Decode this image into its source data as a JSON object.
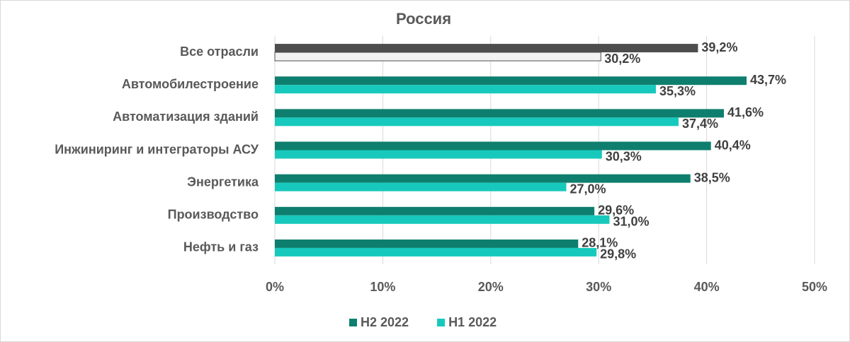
{
  "chart_data": {
    "type": "hbar",
    "title": "Россия",
    "categories": [
      "Все отрасли",
      "Автомобилестроение",
      "Автоматизация зданий",
      "Инжиниринг и интеграторы АСУ",
      "Энергетика",
      "Производство",
      "Нефть и газ"
    ],
    "series": [
      {
        "name": "H2 2022",
        "color": "#0e7f6e",
        "colors": [
          "#4d4d4d",
          "#0e7f6e",
          "#0e7f6e",
          "#0e7f6e",
          "#0e7f6e",
          "#0e7f6e",
          "#0e7f6e"
        ],
        "values": [
          39.2,
          43.7,
          41.6,
          40.4,
          38.5,
          29.6,
          28.1
        ],
        "value_labels": [
          "39,2%",
          "43,7%",
          "41,6%",
          "40,4%",
          "38,5%",
          "29,6%",
          "28,1%"
        ]
      },
      {
        "name": "H1 2022",
        "color": "#17c9bc",
        "colors": [
          "#f2f2f2",
          "#17c9bc",
          "#17c9bc",
          "#17c9bc",
          "#17c9bc",
          "#17c9bc",
          "#17c9bc"
        ],
        "values": [
          30.2,
          35.3,
          37.4,
          30.3,
          27.0,
          31.0,
          29.8
        ],
        "value_labels": [
          "30,2%",
          "35,3%",
          "37,4%",
          "30,3%",
          "27,0%",
          "31,0%",
          "29,8%"
        ]
      }
    ],
    "xlim": [
      0,
      50
    ],
    "xticks": [
      {
        "value": 0,
        "label": "0%"
      },
      {
        "value": 10,
        "label": "10%"
      },
      {
        "value": 20,
        "label": "20%"
      },
      {
        "value": 30,
        "label": "30%"
      },
      {
        "value": 40,
        "label": "40%"
      },
      {
        "value": 50,
        "label": "50%"
      }
    ],
    "grid": true,
    "legend": "bottom"
  }
}
